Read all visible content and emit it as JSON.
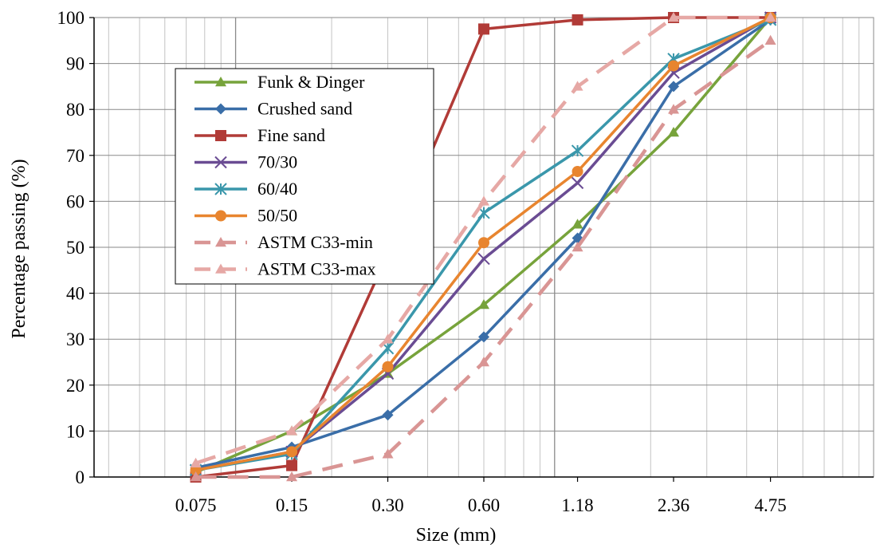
{
  "chart_data": {
    "type": "line",
    "xlabel": "Size (mm)",
    "ylabel": "Percentage passing (%)",
    "x_scale": "log",
    "x_range": [
      0.036,
      10
    ],
    "ylim": [
      0,
      100
    ],
    "grid": true,
    "legend_position": "top-left",
    "x_tick_labels": [
      "0.075",
      "0.15",
      "0.30",
      "0.60",
      "1.18",
      "2.36",
      "4.75"
    ],
    "x_ticks": [
      0.075,
      0.15,
      0.3,
      0.6,
      1.18,
      2.36,
      4.75
    ],
    "y_ticks": [
      0,
      10,
      20,
      30,
      40,
      50,
      60,
      70,
      80,
      90,
      100
    ],
    "series": [
      {
        "name": "Funk & Dinger",
        "color": "#77a33b",
        "marker": "triangle",
        "dashed": false,
        "x": [
          0.075,
          0.15,
          0.3,
          0.6,
          1.18,
          2.36,
          4.75
        ],
        "y": [
          1,
          10,
          22.5,
          37.5,
          55,
          75,
          100
        ]
      },
      {
        "name": "Crushed sand",
        "color": "#3a6ea8",
        "marker": "diamond",
        "dashed": false,
        "x": [
          0.075,
          0.15,
          0.3,
          0.6,
          1.18,
          2.36,
          4.75
        ],
        "y": [
          2,
          6.5,
          13.5,
          30.5,
          52,
          85,
          99.5
        ]
      },
      {
        "name": "Fine sand",
        "color": "#b13b37",
        "marker": "square",
        "dashed": false,
        "x": [
          0.075,
          0.15,
          0.3,
          0.6,
          1.18,
          2.36,
          4.75
        ],
        "y": [
          0,
          2.5,
          48.5,
          97.5,
          99.5,
          100,
          100
        ]
      },
      {
        "name": "70/30",
        "color": "#6a4c93",
        "marker": "x",
        "dashed": false,
        "x": [
          0.075,
          0.15,
          0.3,
          0.6,
          1.18,
          2.36,
          4.75
        ],
        "y": [
          1.5,
          5.5,
          22.5,
          47.5,
          64,
          88,
          100
        ]
      },
      {
        "name": "60/40",
        "color": "#3a97ab",
        "marker": "star",
        "dashed": false,
        "x": [
          0.075,
          0.15,
          0.3,
          0.6,
          1.18,
          2.36,
          4.75
        ],
        "y": [
          1.5,
          5,
          28,
          57.5,
          71,
          91,
          99.5
        ]
      },
      {
        "name": "50/50",
        "color": "#e8852f",
        "marker": "circle",
        "dashed": false,
        "x": [
          0.075,
          0.15,
          0.3,
          0.6,
          1.18,
          2.36,
          4.75
        ],
        "y": [
          1.5,
          5.5,
          24,
          51,
          66.5,
          89.5,
          100
        ]
      },
      {
        "name": "ASTM C33-min",
        "color": "#d99594",
        "marker": "triangle",
        "dashed": true,
        "x": [
          0.075,
          0.15,
          0.3,
          0.6,
          1.18,
          2.36,
          4.75
        ],
        "y": [
          0,
          0,
          5,
          25,
          50,
          80,
          95
        ]
      },
      {
        "name": "ASTM C33-max",
        "color": "#e6a8a5",
        "marker": "triangle",
        "dashed": true,
        "x": [
          0.075,
          0.15,
          0.3,
          0.6,
          1.18,
          2.36,
          4.75
        ],
        "y": [
          3,
          10,
          30,
          60,
          85,
          100,
          100
        ]
      }
    ]
  }
}
